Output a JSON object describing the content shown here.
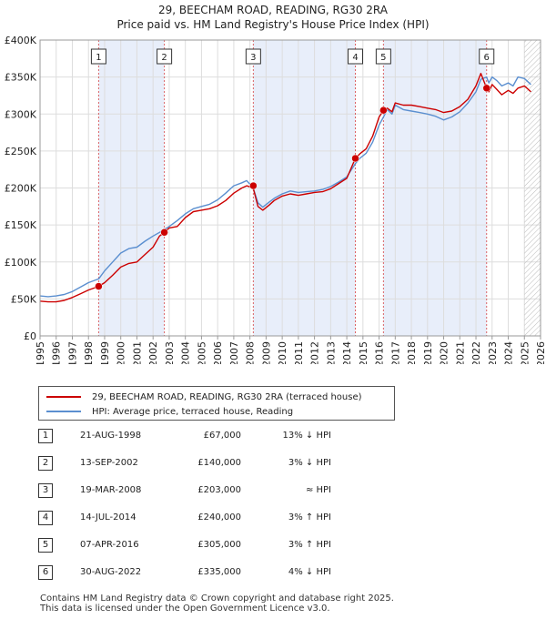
{
  "chart_data": {
    "type": "line",
    "title": "29, BEECHAM ROAD, READING, RG30 2RA",
    "subtitle": "Price paid vs. HM Land Registry's House Price Index (HPI)",
    "xlim": [
      1995,
      2026
    ],
    "ylim": [
      0,
      400000
    ],
    "y_ticks": [
      0,
      50000,
      100000,
      150000,
      200000,
      250000,
      300000,
      350000,
      400000
    ],
    "y_tick_labels": [
      "£0",
      "£50K",
      "£100K",
      "£150K",
      "£200K",
      "£250K",
      "£300K",
      "£350K",
      "£400K"
    ],
    "x_ticks": [
      1995,
      1996,
      1997,
      1998,
      1999,
      2000,
      2001,
      2002,
      2003,
      2004,
      2005,
      2006,
      2007,
      2008,
      2009,
      2010,
      2011,
      2012,
      2013,
      2014,
      2015,
      2016,
      2017,
      2018,
      2019,
      2020,
      2021,
      2022,
      2023,
      2024,
      2025,
      2026
    ],
    "x_tick_labels": [
      "1995",
      "1996",
      "1997",
      "1998",
      "1999",
      "2000",
      "2001",
      "2002",
      "2003",
      "2004",
      "2005",
      "2006",
      "2007",
      "2008",
      "2009",
      "2010",
      "2011",
      "2012",
      "2013",
      "2014",
      "2015",
      "2016",
      "2017",
      "2018",
      "2019",
      "2020",
      "2021",
      "2022",
      "2023",
      "2024",
      "2025",
      "2026"
    ],
    "grid": true,
    "series": [
      {
        "name": "29, BEECHAM ROAD, READING, RG30 2RA (terraced house)",
        "color": "#cc0000",
        "x": [
          1995.0,
          1995.5,
          1996.0,
          1996.5,
          1997.0,
          1997.5,
          1998.0,
          1998.63,
          1999.0,
          1999.5,
          2000.0,
          2000.5,
          2001.0,
          2001.5,
          2002.0,
          2002.4,
          2002.7,
          2003.0,
          2003.5,
          2004.0,
          2004.5,
          2005.0,
          2005.5,
          2006.0,
          2006.5,
          2007.0,
          2007.5,
          2007.8,
          2008.2,
          2008.5,
          2008.8,
          2009.2,
          2009.5,
          2010.0,
          2010.5,
          2011.0,
          2011.5,
          2012.0,
          2012.5,
          2013.0,
          2013.5,
          2014.0,
          2014.53,
          2014.8,
          2015.2,
          2015.6,
          2016.0,
          2016.27,
          2016.5,
          2016.8,
          2017.0,
          2017.5,
          2018.0,
          2018.5,
          2019.0,
          2019.5,
          2020.0,
          2020.5,
          2021.0,
          2021.5,
          2022.0,
          2022.3,
          2022.66,
          2022.8,
          2023.0,
          2023.3,
          2023.6,
          2024.0,
          2024.3,
          2024.6,
          2025.0,
          2025.4
        ],
        "values": [
          47000,
          46000,
          46000,
          48000,
          52000,
          57000,
          62000,
          67000,
          72000,
          82000,
          93000,
          98000,
          100000,
          110000,
          120000,
          135000,
          140000,
          146000,
          148000,
          160000,
          168000,
          170000,
          172000,
          176000,
          183000,
          193000,
          200000,
          203000,
          200000,
          175000,
          170000,
          177000,
          183000,
          189000,
          192000,
          190000,
          192000,
          194000,
          195000,
          199000,
          206000,
          213000,
          240000,
          246000,
          253000,
          270000,
          296000,
          305000,
          308000,
          303000,
          315000,
          312000,
          312000,
          310000,
          308000,
          306000,
          302000,
          304000,
          310000,
          320000,
          338000,
          355000,
          335000,
          330000,
          340000,
          333000,
          326000,
          332000,
          328000,
          335000,
          338000,
          330000
        ]
      },
      {
        "name": "HPI: Average price, terraced house, Reading",
        "color": "#5b8fd0",
        "x": [
          1995.0,
          1995.5,
          1996.0,
          1996.5,
          1997.0,
          1997.5,
          1998.0,
          1998.63,
          1999.0,
          1999.5,
          2000.0,
          2000.5,
          2001.0,
          2001.5,
          2002.0,
          2002.4,
          2002.7,
          2003.0,
          2003.5,
          2004.0,
          2004.5,
          2005.0,
          2005.5,
          2006.0,
          2006.5,
          2007.0,
          2007.5,
          2007.8,
          2008.2,
          2008.5,
          2008.8,
          2009.2,
          2009.5,
          2010.0,
          2010.5,
          2011.0,
          2011.5,
          2012.0,
          2012.5,
          2013.0,
          2013.5,
          2014.0,
          2014.53,
          2014.8,
          2015.2,
          2015.6,
          2016.0,
          2016.27,
          2016.5,
          2016.8,
          2017.0,
          2017.5,
          2018.0,
          2018.5,
          2019.0,
          2019.5,
          2020.0,
          2020.5,
          2021.0,
          2021.5,
          2022.0,
          2022.3,
          2022.66,
          2022.8,
          2023.0,
          2023.3,
          2023.6,
          2024.0,
          2024.3,
          2024.6,
          2025.0,
          2025.4
        ],
        "values": [
          54000,
          53000,
          54000,
          56000,
          60000,
          66000,
          72000,
          77000,
          88000,
          100000,
          112000,
          118000,
          120000,
          128000,
          135000,
          140000,
          144000,
          148000,
          156000,
          165000,
          172000,
          175000,
          178000,
          184000,
          193000,
          203000,
          207000,
          210000,
          200000,
          180000,
          174000,
          181000,
          186000,
          192000,
          196000,
          194000,
          195000,
          196000,
          198000,
          202000,
          208000,
          215000,
          233000,
          240000,
          247000,
          262000,
          285000,
          296000,
          306000,
          300000,
          312000,
          306000,
          304000,
          302000,
          300000,
          297000,
          292000,
          296000,
          303000,
          315000,
          330000,
          347000,
          350000,
          342000,
          350000,
          345000,
          338000,
          342000,
          338000,
          350000,
          348000,
          340000
        ]
      }
    ],
    "sales": [
      {
        "label": "1",
        "year": 1998.63,
        "value": 67000
      },
      {
        "label": "2",
        "year": 2002.7,
        "value": 140000
      },
      {
        "label": "3",
        "year": 2008.21,
        "value": 203000
      },
      {
        "label": "4",
        "year": 2014.53,
        "value": 240000
      },
      {
        "label": "5",
        "year": 2016.27,
        "value": 305000
      },
      {
        "label": "6",
        "year": 2022.66,
        "value": 335000
      }
    ],
    "shaded_intervals": [
      [
        1998.63,
        2002.7
      ],
      [
        2008.21,
        2014.53
      ],
      [
        2016.27,
        2022.66
      ]
    ],
    "future_hatch_from": 2025.0
  },
  "legend": {
    "property_label": "29, BEECHAM ROAD, READING, RG30 2RA (terraced house)",
    "hpi_label": "HPI: Average price, terraced house, Reading"
  },
  "sales_table": [
    {
      "num": "1",
      "date": "21-AUG-1998",
      "price": "£67,000",
      "hpi": "13% ↓ HPI"
    },
    {
      "num": "2",
      "date": "13-SEP-2002",
      "price": "£140,000",
      "hpi": "3% ↓ HPI"
    },
    {
      "num": "3",
      "date": "19-MAR-2008",
      "price": "£203,000",
      "hpi": "≈ HPI"
    },
    {
      "num": "4",
      "date": "14-JUL-2014",
      "price": "£240,000",
      "hpi": "3% ↑ HPI"
    },
    {
      "num": "5",
      "date": "07-APR-2016",
      "price": "£305,000",
      "hpi": "3% ↑ HPI"
    },
    {
      "num": "6",
      "date": "30-AUG-2022",
      "price": "£335,000",
      "hpi": "4% ↓ HPI"
    }
  ],
  "footer": {
    "line1": "Contains HM Land Registry data © Crown copyright and database right 2025.",
    "line2": "This data is licensed under the Open Government Licence v3.0."
  },
  "colors": {
    "property_line": "#cc0000",
    "hpi_line": "#5b8fd0",
    "shade": "#e8eefa",
    "sale_marker_line": "#cc0000"
  }
}
